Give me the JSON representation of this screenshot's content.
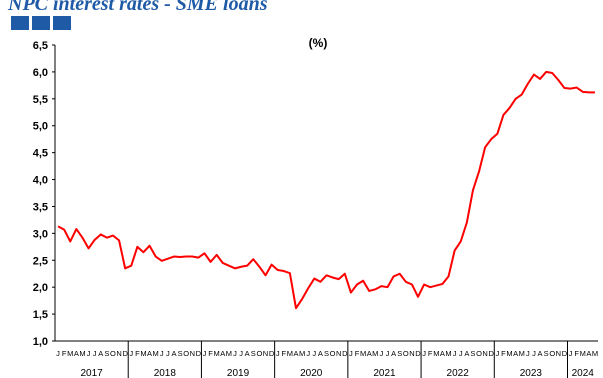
{
  "header": {
    "title": "NPC interest rates - SME loans"
  },
  "chart_data": {
    "type": "line",
    "title": "(%)",
    "xlabel": "",
    "ylabel": "",
    "ylim": [
      1.0,
      6.5
    ],
    "ytick_labels": [
      "1,0",
      "1,5",
      "2,0",
      "2,5",
      "3,0",
      "3,5",
      "4,0",
      "4,5",
      "5,0",
      "5,5",
      "6,0",
      "6,5"
    ],
    "grid": false,
    "legend": "none",
    "line_color": "#ff0000",
    "years": [
      "2017",
      "2018",
      "2019",
      "2020",
      "2021",
      "2022",
      "2023",
      "2024"
    ],
    "month_letters": [
      "J",
      "F",
      "M",
      "A",
      "M",
      "J",
      "J",
      "A",
      "S",
      "O",
      "N",
      "D"
    ],
    "x_start": "2017-01",
    "x_end": "2024-05",
    "series": [
      {
        "values": [
          3.13,
          3.07,
          2.85,
          3.08,
          2.92,
          2.72,
          2.88,
          2.98,
          2.92,
          2.96,
          2.87,
          2.35,
          2.4,
          2.75,
          2.65,
          2.77,
          2.57,
          2.49,
          2.53,
          2.57,
          2.56,
          2.57,
          2.57,
          2.55,
          2.63,
          2.47,
          2.6,
          2.45,
          2.4,
          2.35,
          2.38,
          2.4,
          2.52,
          2.38,
          2.22,
          2.42,
          2.32,
          2.3,
          2.26,
          1.61,
          1.78,
          1.98,
          2.16,
          2.1,
          2.22,
          2.18,
          2.15,
          2.25,
          1.9,
          2.05,
          2.12,
          1.93,
          1.96,
          2.02,
          2.0,
          2.2,
          2.25,
          2.1,
          2.05,
          1.82,
          2.05,
          2.0,
          2.03,
          2.06,
          2.2,
          2.68,
          2.85,
          3.2,
          3.8,
          4.15,
          4.6,
          4.75,
          4.85,
          5.2,
          5.33,
          5.5,
          5.58,
          5.78,
          5.95,
          5.87,
          6.0,
          5.98,
          5.85,
          5.7,
          5.69,
          5.71,
          5.63,
          5.62,
          5.62
        ]
      }
    ]
  }
}
